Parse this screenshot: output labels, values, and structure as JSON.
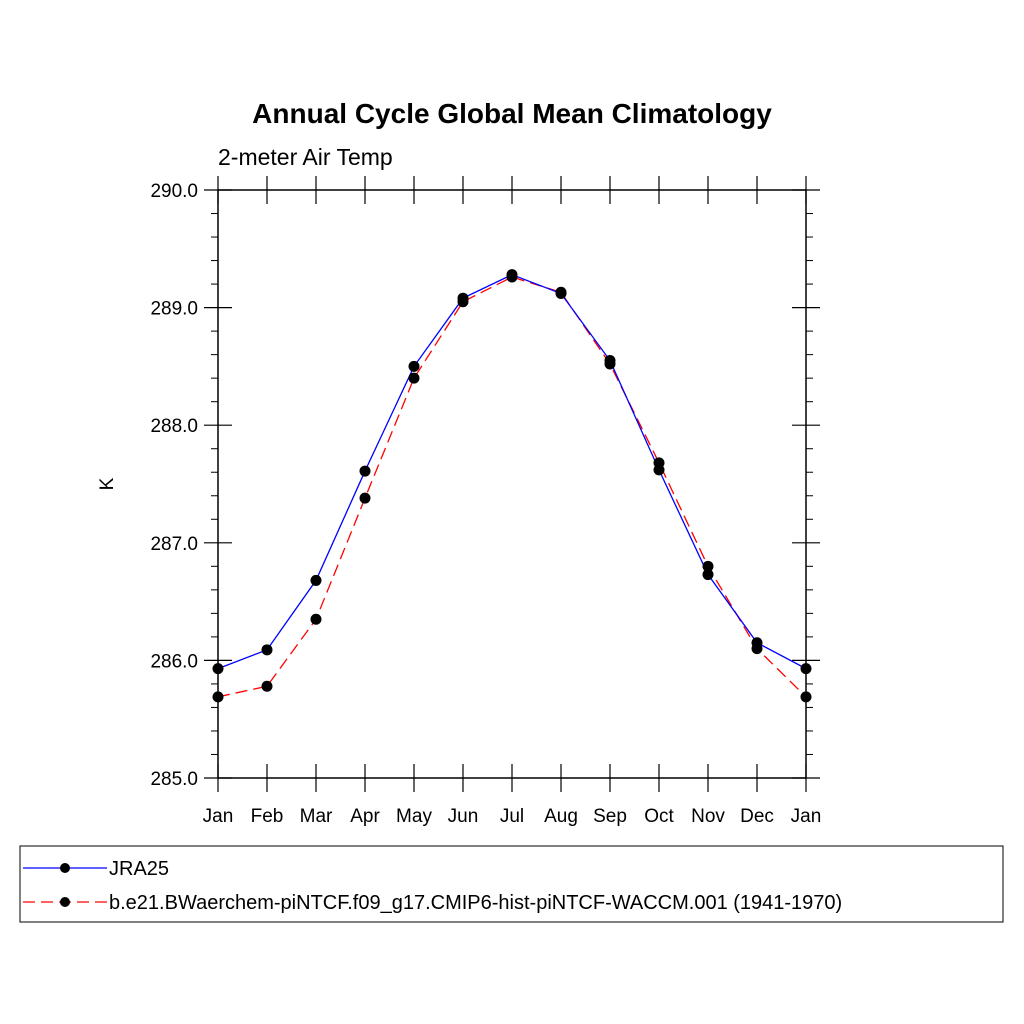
{
  "chart_data": {
    "type": "line",
    "title": "Annual Cycle Global Mean Climatology",
    "subtitle": "2-meter Air Temp",
    "xlabel": "",
    "ylabel": "K",
    "categories": [
      "Jan",
      "Feb",
      "Mar",
      "Apr",
      "May",
      "Jun",
      "Jul",
      "Aug",
      "Sep",
      "Oct",
      "Nov",
      "Dec",
      "Jan"
    ],
    "ylim": [
      285.0,
      290.0
    ],
    "yticks": [
      "285.0",
      "286.0",
      "287.0",
      "288.0",
      "289.0",
      "290.0"
    ],
    "grid": false,
    "legend_position": "bottom",
    "series": [
      {
        "name": "JRA25",
        "color": "#0000ff",
        "line_style": "solid",
        "marker": "filled-circle",
        "values": [
          285.93,
          286.09,
          286.68,
          287.61,
          288.5,
          289.08,
          289.28,
          289.12,
          288.55,
          287.62,
          286.73,
          286.15,
          285.93
        ]
      },
      {
        "name": "b.e21.BWaerchem-piNTCF.f09_g17.CMIP6-hist-piNTCF-WACCM.001 (1941-1970)",
        "color": "#ff0000",
        "line_style": "dashed",
        "marker": "filled-circle",
        "values": [
          285.69,
          285.78,
          286.35,
          287.38,
          288.4,
          289.05,
          289.26,
          289.13,
          288.52,
          287.68,
          286.8,
          286.1,
          285.69
        ]
      }
    ]
  }
}
